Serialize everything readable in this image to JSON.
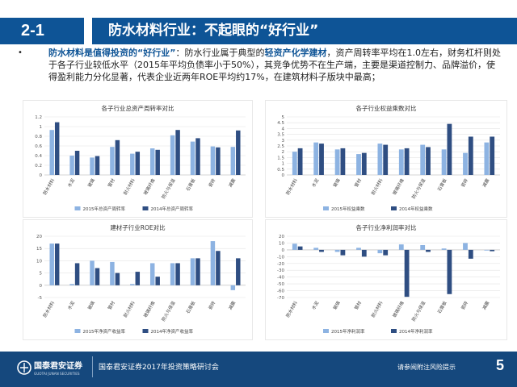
{
  "header": {
    "section_num": "2-1",
    "title": "防水材料行业：不起眼的“好行业”"
  },
  "body": {
    "bullet": "•",
    "lead": "防水材料是值得投资的“好行业”",
    "t1": "：防水行业属于典型的",
    "hl2": "轻资产化学建材",
    "t2": "，资产周转率平均在1.0左右，财务杠杆则处于各子行业较低水平（2015年平均负债率小于50%），其竞争优势不在生产端，主要是渠道控制力、品牌溢价，使得盈利能力分化显著，代表企业近两年ROE平均约17%，在建筑材料子版块中最高；"
  },
  "colors": {
    "brand_blue": "#0e5496",
    "series_2015": "#8db3e2",
    "series_2014": "#2f4e82",
    "footer_bg": "#15487d"
  },
  "chart_data": [
    {
      "type": "bar",
      "title": "各子行业总资产周转率对比",
      "categories": [
        "防水材料",
        "水泥",
        "玻璃",
        "管材",
        "耐火材料",
        "玻璃纤维",
        "防火与保温",
        "石膏板",
        "瓷砖",
        "减震"
      ],
      "series": [
        {
          "name": "2015年总资产周转率",
          "values": [
            0.93,
            0.4,
            0.36,
            0.58,
            0.44,
            0.55,
            0.82,
            0.69,
            0.59,
            0.58
          ]
        },
        {
          "name": "2014年总资产周转率",
          "values": [
            1.09,
            0.5,
            0.39,
            0.72,
            0.48,
            0.52,
            0.93,
            0.76,
            0.57,
            0.92
          ]
        }
      ],
      "yticks": [
        "0",
        "0.2",
        "0.4",
        "0.6",
        "0.8",
        "1",
        "1.2"
      ],
      "ylim": [
        0,
        1.2
      ]
    },
    {
      "type": "bar",
      "title": "各子行业权益乘数对比",
      "categories": [
        "防水材料",
        "水泥",
        "玻璃",
        "管材",
        "耐火材料",
        "玻璃纤维",
        "防火与保温",
        "石膏板",
        "瓷砖",
        "减震"
      ],
      "series": [
        {
          "name": "2015年权益乘数",
          "values": [
            2.0,
            2.8,
            2.2,
            1.8,
            2.7,
            2.2,
            2.6,
            2.2,
            1.9,
            2.8
          ]
        },
        {
          "name": "2014年权益乘数",
          "values": [
            2.3,
            2.7,
            2.3,
            1.9,
            2.6,
            2.3,
            2.4,
            4.4,
            3.3,
            3.3
          ]
        }
      ],
      "yticks": [
        "0",
        "0.5",
        "1",
        "1.5",
        "2",
        "2.5",
        "3",
        "3.5",
        "4",
        "4.5",
        "5"
      ],
      "ylim": [
        0,
        5
      ]
    },
    {
      "type": "bar",
      "title": "建材子行业ROE对比",
      "categories": [
        "防水材料",
        "水泥",
        "玻璃",
        "管材",
        "耐火材料",
        "玻璃纤维",
        "防火与保温",
        "石膏板",
        "瓷砖",
        "减震"
      ],
      "series": [
        {
          "name": "2015年净资产收益率",
          "values": [
            17,
            0.5,
            10,
            9.5,
            0.5,
            9,
            9,
            11,
            18,
            -2
          ]
        },
        {
          "name": "2014年净资产收益率",
          "values": [
            17,
            9,
            7,
            5,
            5.5,
            3.5,
            9,
            11,
            14,
            11
          ]
        }
      ],
      "yticks": [
        "-5",
        "0",
        "5",
        "10",
        "15",
        "20"
      ],
      "ylim": [
        -5,
        20
      ]
    },
    {
      "type": "bar",
      "title": "各子行业净利润率对比",
      "categories": [
        "防水材料",
        "水泥",
        "玻璃",
        "管材",
        "耐火材料",
        "玻璃纤维",
        "防火与保温",
        "石膏板",
        "瓷砖",
        "减震"
      ],
      "series": [
        {
          "name": "2015年净利润率",
          "values": [
            9,
            3,
            -3,
            3,
            -5,
            8,
            7,
            2,
            10,
            -1
          ]
        },
        {
          "name": "2014年净利润率",
          "values": [
            5,
            -3,
            -8,
            -10,
            -8,
            -69,
            -3,
            -65,
            -13,
            -2
          ]
        }
      ],
      "yticks": [
        "-70",
        "-60",
        "-50",
        "-40",
        "-30",
        "-20",
        "-10",
        "0",
        "10",
        "20"
      ],
      "ylim": [
        -70,
        20
      ]
    }
  ],
  "footer": {
    "logo": "国泰君安证券",
    "logo_sub": "GUOTAI JUNAN SECURITIES",
    "text": "国泰君安证券2017年投资策略研讨会",
    "disclaimer": "请参阅附注风险提示",
    "page": "5"
  }
}
